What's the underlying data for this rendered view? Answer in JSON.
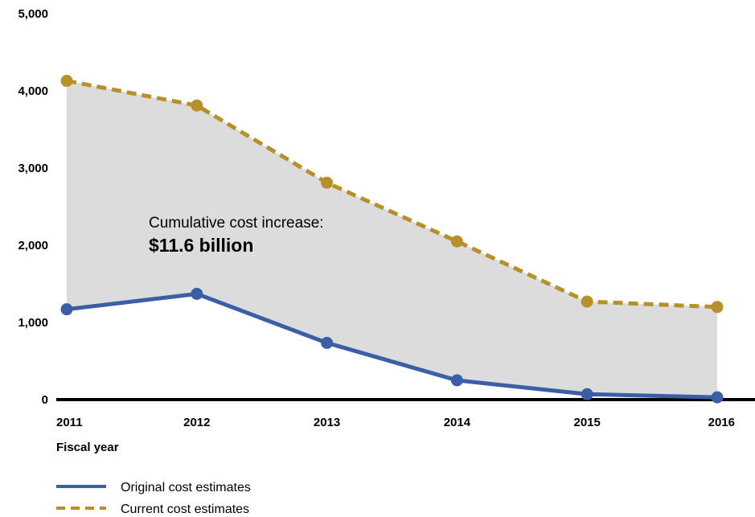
{
  "chart_data": {
    "type": "area",
    "x": [
      "2011",
      "2012",
      "2013",
      "2014",
      "2015",
      "2016"
    ],
    "series": [
      {
        "name": "Original cost estimates",
        "values": [
          1170,
          1370,
          735,
          250,
          70,
          30
        ],
        "color": "#3b5ea6",
        "style": "solid"
      },
      {
        "name": "Current cost estimates",
        "values": [
          4130,
          3810,
          2810,
          2050,
          1270,
          1200
        ],
        "color": "#b8902a",
        "style": "dashed"
      }
    ],
    "fill_between_color": "#dcdcdc",
    "xlabel": "Fiscal year",
    "ylabel": "",
    "ylim": [
      0,
      5000
    ],
    "yticks": [
      "0",
      "1,000",
      "2,000",
      "3,000",
      "4,000",
      "5,000"
    ],
    "yticks_values": [
      0,
      1000,
      2000,
      3000,
      4000,
      5000
    ],
    "grid": false,
    "legend_position": "bottom-left",
    "annotation": {
      "line1": "Cumulative cost increase:",
      "line2": "$11.6 billion"
    }
  }
}
